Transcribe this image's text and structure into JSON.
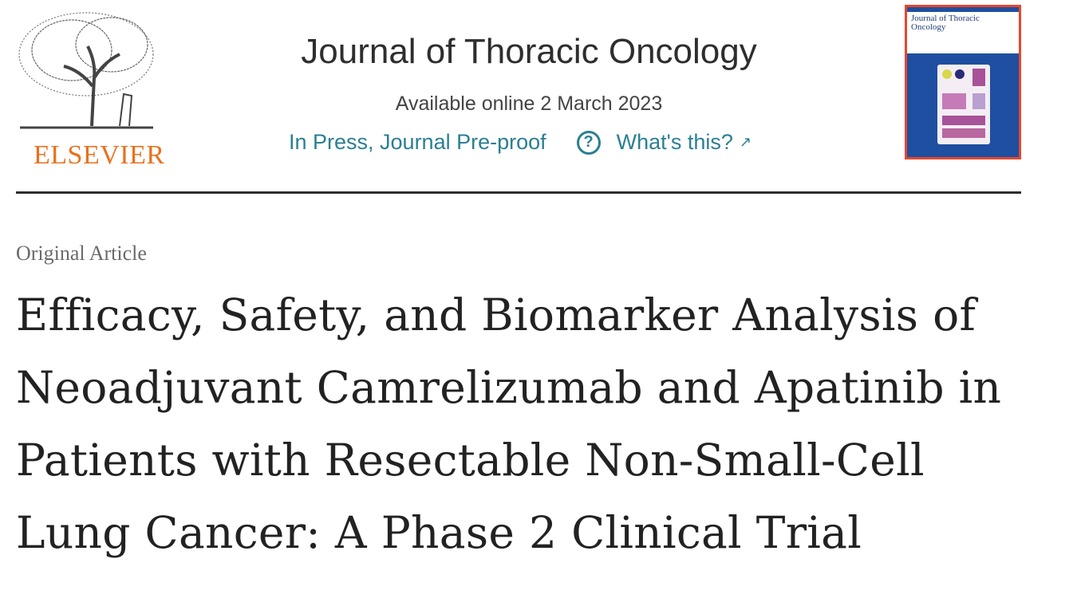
{
  "publisher": {
    "logo_text": "ELSEVIER",
    "brand_color": "#e9711c"
  },
  "journal": {
    "title": "Journal of Thoracic Oncology",
    "availability": "Available online 2 March 2023",
    "status": "In Press, Journal Pre-proof",
    "help_icon": "question-circle-icon",
    "help_link": "What's this?",
    "external_icon": "↗",
    "link_color": "#2b7f92",
    "cover_title": "Journal of Thoracic Oncology"
  },
  "article": {
    "type": "Original Article",
    "title": "Efficacy, Safety, and Biomarker Analysis of Neoadjuvant Camrelizumab and Apatinib in Patients with Resectable Non-Small-Cell Lung Cancer: A Phase 2 Clinical Trial"
  }
}
